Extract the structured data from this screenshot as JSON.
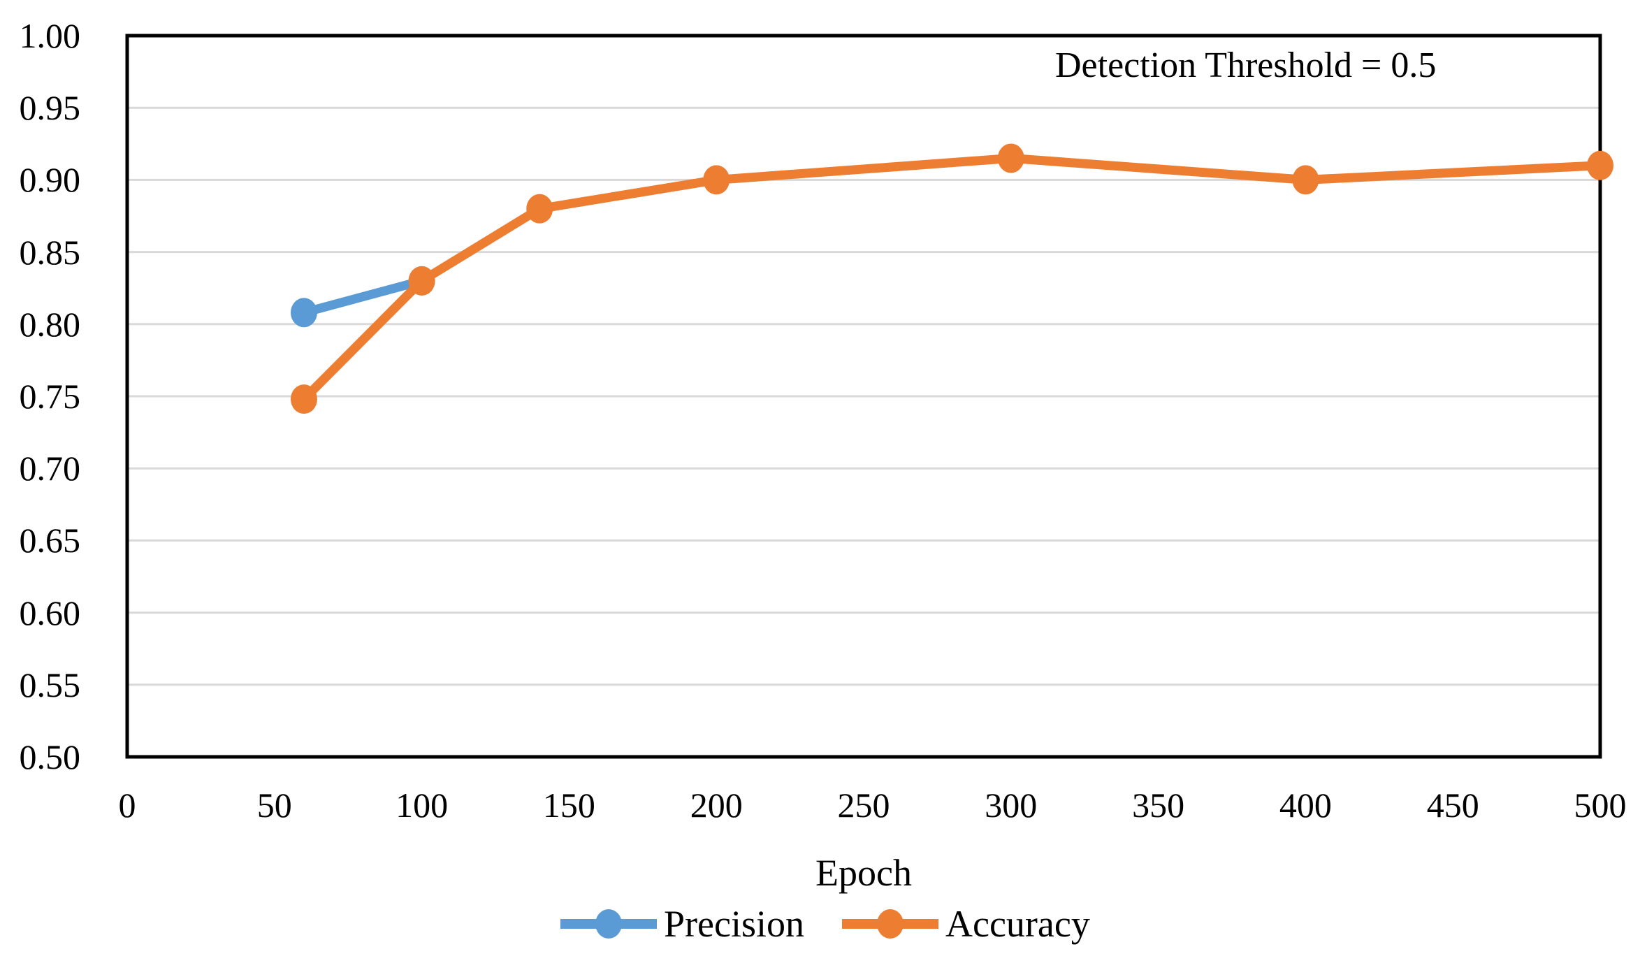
{
  "chart_data": {
    "type": "line",
    "title": "",
    "annotation": "Detection Threshold = 0.5",
    "xlabel": "Epoch",
    "ylabel": "",
    "xlim": [
      0,
      500
    ],
    "ylim": [
      0.5,
      1.0
    ],
    "x_ticks": [
      0,
      50,
      100,
      150,
      200,
      250,
      300,
      350,
      400,
      450,
      500
    ],
    "y_ticks": [
      "1.00",
      "0.95",
      "0.90",
      "0.85",
      "0.80",
      "0.75",
      "0.70",
      "0.65",
      "0.60",
      "0.55",
      "0.50"
    ],
    "grid": "horizontal",
    "legend_position": "bottom-center",
    "series": [
      {
        "name": "Precision",
        "color": "#5B9BD5",
        "x": [
          60,
          100
        ],
        "y": [
          0.808,
          0.83
        ]
      },
      {
        "name": "Accuracy",
        "color": "#ED7D31",
        "x": [
          60,
          100,
          140,
          200,
          300,
          400,
          500
        ],
        "y": [
          0.748,
          0.83,
          0.88,
          0.9,
          0.915,
          0.9,
          0.91
        ]
      }
    ],
    "colors": {
      "gridline": "#D9D9D9",
      "border": "#000000",
      "background": "#FFFFFF"
    }
  }
}
